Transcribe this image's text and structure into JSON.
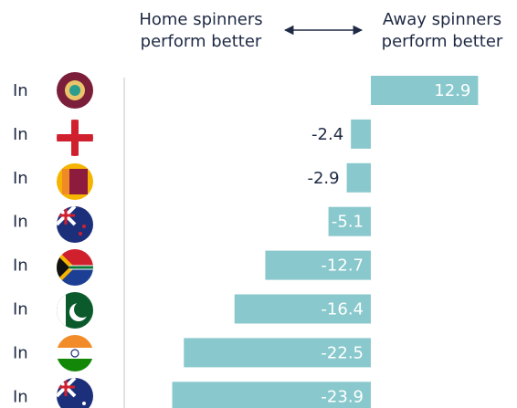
{
  "chart_data": {
    "type": "bar",
    "orientation": "horizontal",
    "annotations": [
      [
        "Home spinners",
        "perform better"
      ],
      [
        "Away spinners",
        "perform better"
      ]
    ],
    "categories": [
      "In",
      "In",
      "In",
      "In",
      "In",
      "In",
      "In",
      "In"
    ],
    "values": [
      12.9,
      -2.4,
      -2.9,
      -5.1,
      -12.7,
      -16.4,
      -22.5,
      -23.9
    ],
    "color": "#89c9cd"
  }
}
